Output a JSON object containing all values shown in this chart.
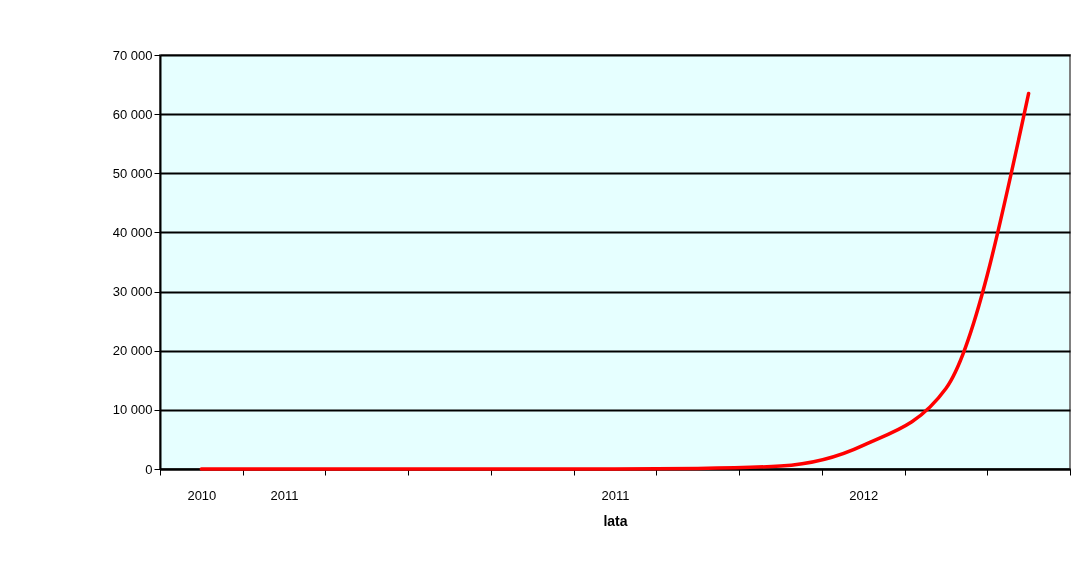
{
  "chart_data": {
    "type": "line",
    "xlabel": "lata",
    "categories": [
      "2010",
      "2011",
      null,
      null,
      null,
      "2011",
      null,
      null,
      "2012",
      null,
      null
    ],
    "series": [
      {
        "color": "#ff0000",
        "values": [
          0,
          0,
          0,
          0,
          0,
          0,
          100,
          500,
          4000,
          13600,
          63500
        ]
      }
    ],
    "ylim": [
      0,
      70000
    ],
    "yticks": [
      0,
      {
        "value": 10000,
        "label": "10 000"
      },
      {
        "value": 20000,
        "label": "20 000"
      },
      {
        "value": 30000,
        "label": "30 000"
      },
      {
        "value": 40000,
        "label": "40 000"
      },
      {
        "value": 50000,
        "label": "50 000"
      },
      {
        "value": 60000,
        "label": "60 000"
      },
      {
        "value": 70000,
        "label": "70 000"
      }
    ],
    "grid": "y",
    "legend": false,
    "marker": "none",
    "line_style": "solid"
  }
}
